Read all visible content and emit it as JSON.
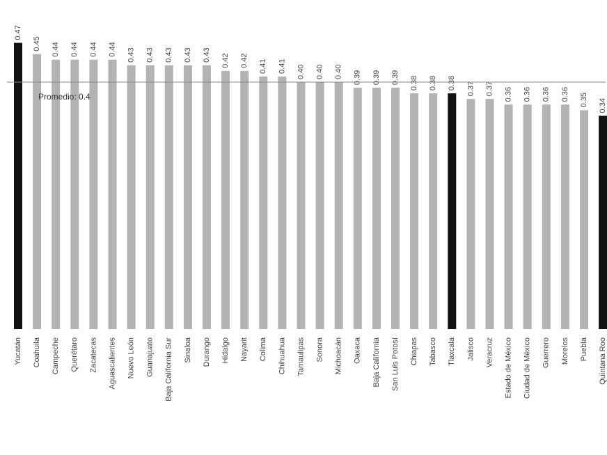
{
  "chart_data": {
    "type": "bar",
    "categories": [
      "Yucatán",
      "Coahuila",
      "Campeche",
      "Querétaro",
      "Zacatecas",
      "Aguascalientes",
      "Nuevo León",
      "Guanajuato",
      "Baja California Sur",
      "Sinaloa",
      "Durango",
      "Hidalgo",
      "Nayarit",
      "Colima",
      "Chihuahua",
      "Tamaulipas",
      "Sonora",
      "Michoacán",
      "Oaxaca",
      "Baja California",
      "San Luis Potosí",
      "Chiapas",
      "Tabasco",
      "Tlaxcala",
      "Jalisco",
      "Veracruz",
      "Estado de México",
      "Ciudad de México",
      "Guerrero",
      "Morelos",
      "Puebla",
      "Quintana Roo"
    ],
    "values": [
      0.47,
      0.45,
      0.44,
      0.44,
      0.44,
      0.44,
      0.43,
      0.43,
      0.43,
      0.43,
      0.43,
      0.42,
      0.42,
      0.41,
      0.41,
      0.4,
      0.4,
      0.4,
      0.39,
      0.39,
      0.39,
      0.38,
      0.38,
      0.38,
      0.37,
      0.37,
      0.36,
      0.36,
      0.36,
      0.36,
      0.35,
      0.34
    ],
    "value_labels": [
      "0.47",
      "0.45",
      "0.44",
      "0.44",
      "0.44",
      "0.44",
      "0.43",
      "0.43",
      "0.43",
      "0.43",
      "0.43",
      "0.42",
      "0.42",
      "0.41",
      "0.41",
      "0.40",
      "0.40",
      "0.40",
      "0.39",
      "0.39",
      "0.39",
      "0.38",
      "0.38",
      "0.38",
      "0.37",
      "0.37",
      "0.36",
      "0.36",
      "0.36",
      "0.36",
      "0.35",
      "0.34"
    ],
    "colors": [
      "#111111",
      "#b3b3b3",
      "#b3b3b3",
      "#b3b3b3",
      "#b3b3b3",
      "#b3b3b3",
      "#b3b3b3",
      "#b3b3b3",
      "#b3b3b3",
      "#b3b3b3",
      "#b3b3b3",
      "#b3b3b3",
      "#b3b3b3",
      "#b3b3b3",
      "#b3b3b3",
      "#b3b3b3",
      "#b3b3b3",
      "#b3b3b3",
      "#b3b3b3",
      "#b3b3b3",
      "#b3b3b3",
      "#b3b3b3",
      "#b3b3b3",
      "#111111",
      "#b3b3b3",
      "#b3b3b3",
      "#b3b3b3",
      "#b3b3b3",
      "#b3b3b3",
      "#b3b3b3",
      "#b3b3b3",
      "#111111"
    ],
    "ylim": [
      -0.04,
      0.48
    ],
    "average": {
      "value": 0.4,
      "label": "Promedio: 0.4"
    }
  }
}
